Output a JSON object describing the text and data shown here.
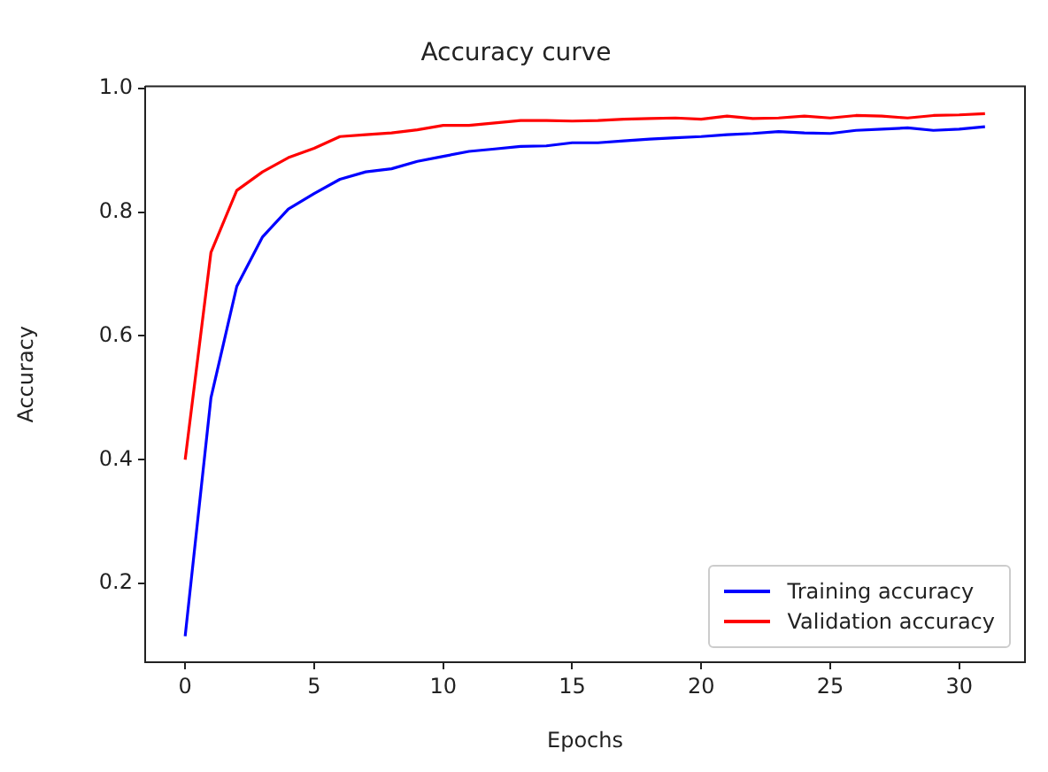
{
  "chart_data": {
    "type": "line",
    "title": "Accuracy curve",
    "xlabel": "Epochs",
    "ylabel": "Accuracy",
    "x": [
      0,
      1,
      2,
      3,
      4,
      5,
      6,
      7,
      8,
      9,
      10,
      11,
      12,
      13,
      14,
      15,
      16,
      17,
      18,
      19,
      20,
      21,
      22,
      23,
      24,
      25,
      26,
      27,
      28,
      29,
      30,
      31
    ],
    "series": [
      {
        "name": "Training accuracy",
        "color": "#0000ff",
        "values": [
          0.115,
          0.5,
          0.68,
          0.76,
          0.805,
          0.83,
          0.853,
          0.865,
          0.87,
          0.882,
          0.89,
          0.898,
          0.902,
          0.906,
          0.907,
          0.912,
          0.912,
          0.915,
          0.918,
          0.92,
          0.922,
          0.925,
          0.927,
          0.93,
          0.928,
          0.927,
          0.932,
          0.934,
          0.936,
          0.932,
          0.934,
          0.938
        ]
      },
      {
        "name": "Validation accuracy",
        "color": "#ff0000",
        "values": [
          0.4,
          0.735,
          0.835,
          0.865,
          0.888,
          0.903,
          0.922,
          0.925,
          0.928,
          0.933,
          0.94,
          0.94,
          0.944,
          0.948,
          0.948,
          0.947,
          0.948,
          0.95,
          0.951,
          0.952,
          0.95,
          0.955,
          0.951,
          0.952,
          0.955,
          0.952,
          0.956,
          0.955,
          0.952,
          0.956,
          0.957,
          0.959
        ]
      }
    ],
    "xlim": [
      -1.55,
      32.55
    ],
    "xticks": [
      0,
      5,
      10,
      15,
      20,
      25,
      30
    ],
    "ylim": [
      0.073,
      1.003
    ],
    "yticks": [
      0.2,
      0.4,
      0.6,
      0.8,
      {
        "value": 1,
        "label": "1.0"
      }
    ],
    "grid": false,
    "legend": "bottom right",
    "marker": "none",
    "line_style": "solid"
  }
}
